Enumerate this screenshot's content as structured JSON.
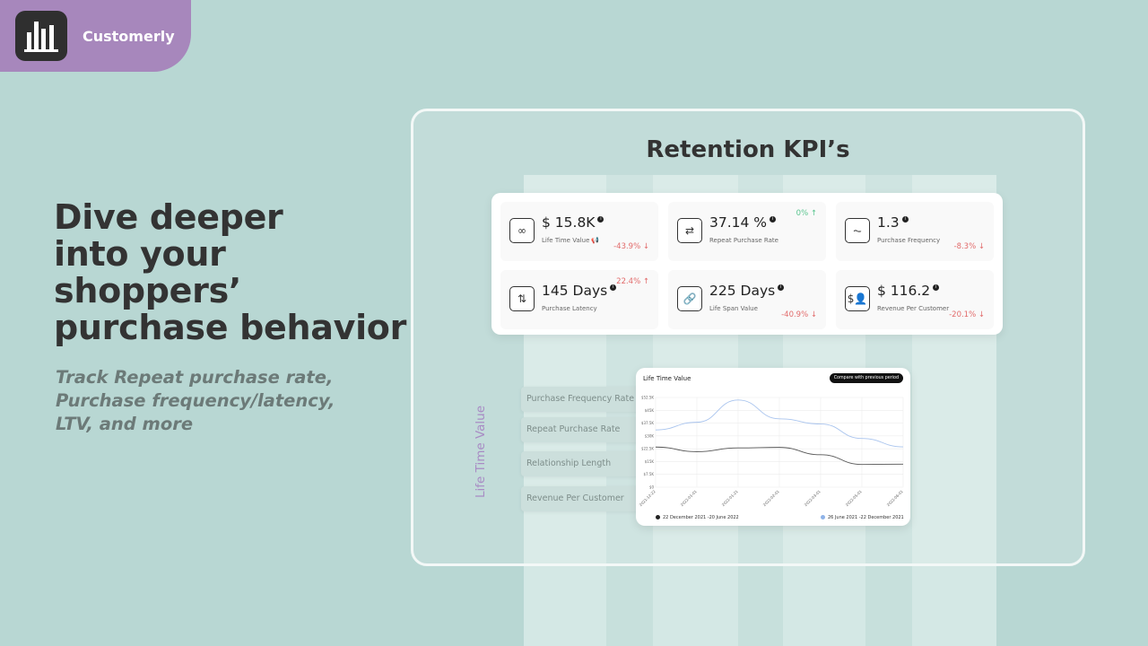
{
  "brand": {
    "name": "Customerly",
    "logo_icon": "bar-chart-icon"
  },
  "hero": {
    "lines": [
      "Dive deeper",
      "into your",
      "shoppers’",
      "purchase behavior"
    ],
    "subtitle_lines": [
      "Track Repeat purchase rate,",
      "Purchase frequency/latency,",
      "LTV, and more"
    ]
  },
  "panel": {
    "title": "Retention KPI’s"
  },
  "kpis": [
    {
      "value": "$ 15.8K",
      "label": "Life Time Value",
      "change": "-43.9%",
      "direction": "down",
      "icon": "infinity-icon"
    },
    {
      "value": "37.14 %",
      "label": "Repeat Purchase Rate",
      "change": "0%",
      "direction": "up",
      "icon": "repeat-icon"
    },
    {
      "value": "1.3",
      "label": "Purchase Frequency",
      "change": "-8.3%",
      "direction": "down",
      "icon": "pulse-icon"
    },
    {
      "value": "145 Days",
      "label": "Purchase Latency",
      "change": "22.4%",
      "direction": "up",
      "icon": "sort-arrows-icon"
    },
    {
      "value": "225 Days",
      "label": "Life Span Value",
      "change": "-40.9%",
      "direction": "down",
      "icon": "link-icon"
    },
    {
      "value": "$ 116.2",
      "label": "Revenue Per Customer",
      "change": "-20.1%",
      "direction": "down",
      "icon": "customer-revenue-icon"
    }
  ],
  "vertical_label": "Life Time Value",
  "metric_buttons": [
    "Purchase Frequency Rate",
    "Repeat Purchase Rate",
    "Relationship Length",
    "Revenue Per Customer"
  ],
  "chart_card": {
    "title": "Life Time Value",
    "compare_label": "Compare with previous period",
    "legend": [
      {
        "label": "22 December 2021 -20 June 2022",
        "color": "#222222"
      },
      {
        "label": "26 June 2021 -22 December 2021",
        "color": "#8fb3e8"
      }
    ]
  },
  "chart_data": {
    "type": "line",
    "title": "Life Time Value",
    "y_ticks": [
      "$0",
      "$7.5K",
      "$15K",
      "$22.5K",
      "$30K",
      "$37.5K",
      "$45K",
      "$52.5K"
    ],
    "ylim": [
      0,
      52500
    ],
    "x": [
      "2021-12-22",
      "2022-01-01",
      "2022-01-21",
      "2022-02-01",
      "2022-03-01",
      "2022-05-01",
      "2022-06-01"
    ],
    "series": [
      {
        "name": "22 December 2021 -20 June 2022",
        "color": "#555555",
        "values": [
          23500,
          20800,
          23000,
          23300,
          19000,
          13300,
          13500
        ]
      },
      {
        "name": "26 June 2021 -22 December 2021",
        "color": "#a9c4ee",
        "values": [
          33500,
          38000,
          51000,
          40000,
          37000,
          28500,
          23600
        ]
      }
    ],
    "grid": true,
    "legend": "bottom"
  }
}
